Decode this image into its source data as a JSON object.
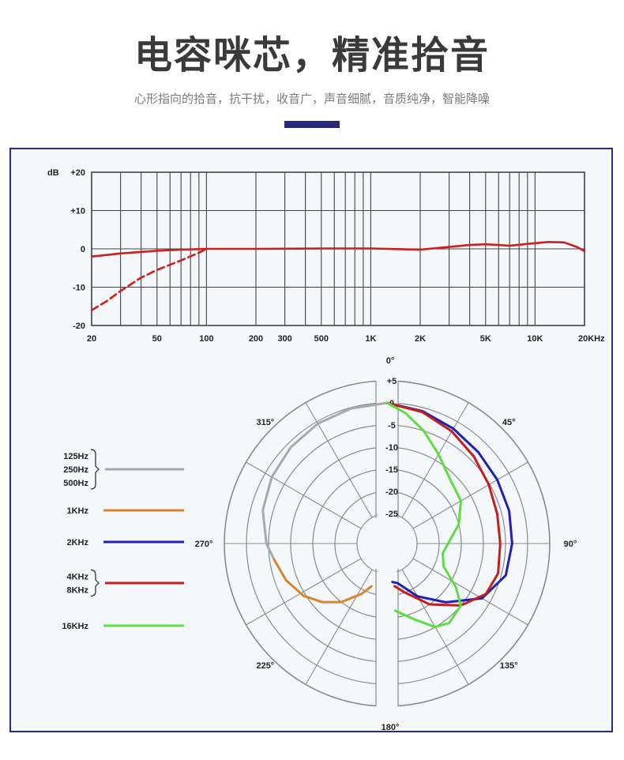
{
  "header": {
    "title": "电容咪芯，精准拾音",
    "subtitle": "心形指向的拾音，抗干扰，收音广，声音细腻，音质纯净，智能降噪"
  },
  "colors": {
    "accent": "#28277e",
    "panel_border": "#2a2a8a",
    "panel_bg": "#f4f8fa",
    "freq_curve": "#cc1f1f",
    "grid": "#444444",
    "c_low": "#a9a9a9",
    "c_1k": "#d9842e",
    "c_2k": "#1f22b0",
    "c_4k8k": "#c41f1f",
    "c_16k": "#5ddc45"
  },
  "chart_data": [
    {
      "type": "line",
      "subtype": "frequency-response",
      "x_scale": "log",
      "xlim": [
        20,
        20000
      ],
      "ylim": [
        -20,
        20
      ],
      "y_unit_label": "dB",
      "y_ticks": [
        {
          "v": 20,
          "label": "+20"
        },
        {
          "v": 10,
          "label": "+10"
        },
        {
          "v": 0,
          "label": "0"
        },
        {
          "v": -10,
          "label": "-10"
        },
        {
          "v": -20,
          "label": "-20"
        }
      ],
      "x_ticks": [
        {
          "v": 20,
          "label": "20"
        },
        {
          "v": 50,
          "label": "50"
        },
        {
          "v": 100,
          "label": "100"
        },
        {
          "v": 200,
          "label": "200"
        },
        {
          "v": 300,
          "label": "300"
        },
        {
          "v": 500,
          "label": "500"
        },
        {
          "v": 1000,
          "label": "1K"
        },
        {
          "v": 2000,
          "label": "2K"
        },
        {
          "v": 5000,
          "label": "5K"
        },
        {
          "v": 10000,
          "label": "10K"
        },
        {
          "v": 20000,
          "label": "20KHz"
        }
      ],
      "grid_lines_x": [
        20,
        30,
        40,
        50,
        60,
        70,
        80,
        90,
        100,
        200,
        300,
        400,
        500,
        600,
        700,
        800,
        900,
        1000,
        2000,
        3000,
        4000,
        5000,
        6000,
        7000,
        8000,
        9000,
        10000,
        20000
      ],
      "grid_lines_y": [
        20,
        10,
        0,
        -10,
        -20
      ],
      "series": [
        {
          "style": "solid",
          "points": [
            [
              20,
              -2
            ],
            [
              30,
              -1.2
            ],
            [
              50,
              -0.5
            ],
            [
              70,
              -0.2
            ],
            [
              100,
              0
            ],
            [
              200,
              0
            ],
            [
              500,
              0.1
            ],
            [
              1000,
              0.1
            ],
            [
              2000,
              -0.2
            ],
            [
              3000,
              0.5
            ],
            [
              4000,
              1
            ],
            [
              5000,
              1.2
            ],
            [
              6000,
              1
            ],
            [
              7000,
              0.8
            ],
            [
              9000,
              1.3
            ],
            [
              12000,
              1.8
            ],
            [
              15000,
              1.7
            ],
            [
              18000,
              0.5
            ],
            [
              20000,
              -0.6
            ]
          ]
        },
        {
          "style": "dashed",
          "points": [
            [
              20,
              -16
            ],
            [
              25,
              -13.5
            ],
            [
              30,
              -11
            ],
            [
              40,
              -7.5
            ],
            [
              50,
              -5.5
            ],
            [
              70,
              -3
            ],
            [
              90,
              -1
            ],
            [
              100,
              0
            ]
          ]
        }
      ]
    },
    {
      "type": "polar",
      "subtype": "polar-pattern",
      "r_ticks": [
        {
          "v": 5,
          "label": "+5"
        },
        {
          "v": 0,
          "label": "0"
        },
        {
          "v": -5,
          "label": "-5"
        },
        {
          "v": -10,
          "label": "-10"
        },
        {
          "v": -15,
          "label": "-15"
        },
        {
          "v": -20,
          "label": "-20"
        },
        {
          "v": -25,
          "label": "-25"
        }
      ],
      "angle_labels": [
        {
          "deg": 0,
          "label": "0°"
        },
        {
          "deg": 45,
          "label": "45°"
        },
        {
          "deg": 90,
          "label": "90°"
        },
        {
          "deg": 135,
          "label": "135°"
        },
        {
          "deg": 180,
          "label": "180°"
        },
        {
          "deg": 225,
          "label": "225°"
        },
        {
          "deg": 270,
          "label": "270°"
        },
        {
          "deg": 315,
          "label": "315°"
        }
      ],
      "legend": [
        {
          "labels": [
            "125Hz",
            "250Hz",
            "500Hz"
          ],
          "color_key": "c_low"
        },
        {
          "labels": [
            "1KHz"
          ],
          "color_key": "c_1k"
        },
        {
          "labels": [
            "2KHz"
          ],
          "color_key": "c_2k"
        },
        {
          "labels": [
            "4KHz",
            "8KHz"
          ],
          "color_key": "c_4k8k"
        },
        {
          "labels": [
            "16KHz"
          ],
          "color_key": "c_16k"
        }
      ],
      "series": [
        {
          "name": "125Hz 250Hz 500Hz",
          "color_key": "c_low",
          "points": [
            [
              360,
              0
            ],
            [
              345,
              -0.2
            ],
            [
              330,
              -0.5
            ],
            [
              315,
              -1
            ],
            [
              300,
              -1.7
            ],
            [
              285,
              -2.7
            ],
            [
              270,
              -4.5
            ],
            [
              262,
              -6
            ]
          ]
        },
        {
          "name": "1KHz",
          "color_key": "c_1k",
          "points": [
            [
              262,
              -6
            ],
            [
              250,
              -7.5
            ],
            [
              238,
              -9.5
            ],
            [
              228,
              -12
            ],
            [
              218,
              -15
            ],
            [
              207,
              -19
            ],
            [
              200,
              -21.5
            ]
          ]
        },
        {
          "name": "2KHz",
          "color_key": "c_2k",
          "points": [
            [
              0,
              0
            ],
            [
              15,
              -0.8
            ],
            [
              30,
              -1.8
            ],
            [
              45,
              -2.6
            ],
            [
              60,
              -3
            ],
            [
              75,
              -3.2
            ],
            [
              90,
              -3.5
            ],
            [
              105,
              -4
            ],
            [
              120,
              -7
            ],
            [
              135,
              -13
            ],
            [
              150,
              -18
            ],
            [
              165,
              -22.5
            ],
            [
              172,
              -23
            ]
          ]
        },
        {
          "name": "4KHz 8KHz",
          "color_key": "c_4k8k",
          "points": [
            [
              0,
              0
            ],
            [
              15,
              -1
            ],
            [
              30,
              -2.5
            ],
            [
              45,
              -4
            ],
            [
              60,
              -5.2
            ],
            [
              75,
              -6
            ],
            [
              90,
              -6.2
            ],
            [
              105,
              -5.8
            ],
            [
              117,
              -6.7
            ],
            [
              130,
              -10
            ],
            [
              145,
              -15
            ],
            [
              160,
              -20
            ],
            [
              170,
              -22
            ]
          ]
        },
        {
          "name": "16KHz",
          "color_key": "c_16k",
          "points": [
            [
              0,
              0
            ],
            [
              8,
              -2
            ],
            [
              18,
              -5
            ],
            [
              30,
              -8.5
            ],
            [
              45,
              -11.5
            ],
            [
              60,
              -12.5
            ],
            [
              75,
              -15
            ],
            [
              90,
              -18
            ],
            [
              100,
              -19
            ],
            [
              112,
              -18
            ],
            [
              122,
              -13.5
            ],
            [
              130,
              -10
            ],
            [
              142,
              -9
            ],
            [
              150,
              -10
            ],
            [
              160,
              -13.5
            ],
            [
              173,
              -16.5
            ]
          ]
        }
      ]
    }
  ]
}
